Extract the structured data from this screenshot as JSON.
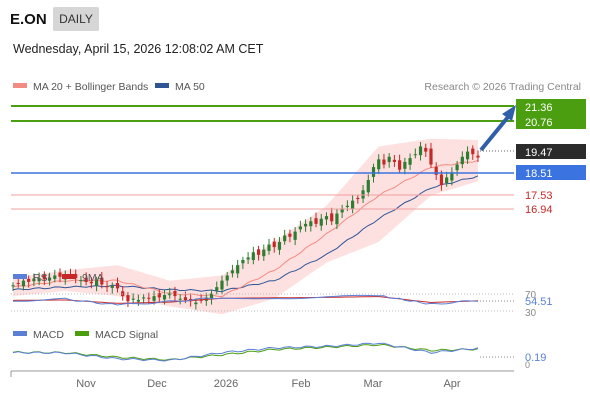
{
  "header": {
    "symbol": "E.ON",
    "period_tab": "DAILY",
    "datetime": "Wednesday, April 15, 2026 12:08:02 AM CET"
  },
  "legend": {
    "items": [
      {
        "label": "MA 20 + Bollinger Bands",
        "color": "#f28b82"
      },
      {
        "label": "MA 50",
        "color": "#2f5597"
      }
    ],
    "credit": "Research © 2026 Trading Central"
  },
  "colors": {
    "bullish": "#2e7d32",
    "bearish": "#c62828",
    "bollinger_fill": "#fde0e0",
    "ma20": "#f28b82",
    "ma50": "#2f5597",
    "resistance": "#4a9e0f",
    "support": "#3b73e0",
    "target_line": "#f0a0a0",
    "arrow": "#2f5fa8",
    "rsi": "#5b7fd6",
    "rsi_ma": "#c62828",
    "macd": "#5b7fd6",
    "macd_signal": "#4a9e0f"
  },
  "price_levels": [
    {
      "label": "21.36",
      "kind": "resistance"
    },
    {
      "label": "20.76",
      "kind": "resistance"
    },
    {
      "label": "19.47",
      "kind": "last"
    },
    {
      "label": "18.51",
      "kind": "support"
    },
    {
      "label": "17.53",
      "kind": "target"
    },
    {
      "label": "16.94",
      "kind": "target"
    }
  ],
  "rsi_panel": {
    "legend": [
      {
        "label": "RSI",
        "color": "#5b7fd6"
      },
      {
        "label": "9MA",
        "color": "#c62828"
      }
    ],
    "levels": [
      "70",
      "30"
    ],
    "value": "54.51"
  },
  "macd_panel": {
    "legend": [
      {
        "label": "MACD",
        "color": "#5b7fd6"
      },
      {
        "label": "MACD Signal",
        "color": "#4a9e0f"
      }
    ],
    "value": "0.19",
    "zero_label": "0"
  },
  "x_axis": {
    "labels": [
      "Nov",
      "Dec",
      "2026",
      "Feb",
      "Mar",
      "Apr"
    ]
  },
  "chart_data": {
    "type": "candlestick",
    "price_range": [
      15.5,
      21.7
    ],
    "series_close": [
      [
        0,
        14.52
      ],
      [
        1,
        14.6
      ],
      [
        2,
        14.7
      ],
      [
        3,
        14.65
      ],
      [
        4,
        14.78
      ],
      [
        5,
        14.8
      ],
      [
        6,
        14.75
      ],
      [
        7,
        14.82
      ],
      [
        8,
        14.9
      ],
      [
        9,
        14.85
      ],
      [
        10,
        14.92
      ],
      [
        11,
        14.88
      ],
      [
        12,
        14.8
      ],
      [
        13,
        14.72
      ],
      [
        14,
        14.65
      ],
      [
        15,
        14.6
      ],
      [
        16,
        14.7
      ],
      [
        17,
        14.55
      ],
      [
        18,
        14.45
      ],
      [
        19,
        14.5
      ],
      [
        20,
        14.4
      ],
      [
        21,
        14.1
      ],
      [
        22,
        13.9
      ],
      [
        23,
        14.0
      ],
      [
        24,
        13.95
      ],
      [
        25,
        14.05
      ],
      [
        26,
        14.0
      ],
      [
        27,
        14.1
      ],
      [
        28,
        14.05
      ],
      [
        29,
        14.15
      ],
      [
        30,
        14.2
      ],
      [
        31,
        14.1
      ],
      [
        32,
        14.0
      ],
      [
        33,
        13.95
      ],
      [
        34,
        13.9
      ],
      [
        35,
        13.85
      ],
      [
        36,
        13.95
      ],
      [
        37,
        14.05
      ],
      [
        38,
        14.2
      ],
      [
        39,
        14.45
      ],
      [
        40,
        14.7
      ],
      [
        41,
        14.9
      ],
      [
        42,
        15.1
      ],
      [
        43,
        15.3
      ],
      [
        44,
        15.5
      ],
      [
        45,
        15.6
      ],
      [
        46,
        15.8
      ],
      [
        47,
        15.7
      ],
      [
        48,
        15.9
      ],
      [
        49,
        16.1
      ],
      [
        50,
        16.0
      ],
      [
        51,
        16.2
      ],
      [
        52,
        16.45
      ],
      [
        53,
        16.4
      ],
      [
        54,
        16.6
      ],
      [
        55,
        16.8
      ],
      [
        56,
        16.9
      ],
      [
        57,
        17.0
      ],
      [
        58,
        16.9
      ],
      [
        59,
        17.1
      ],
      [
        60,
        17.2
      ],
      [
        61,
        17.0
      ],
      [
        62,
        17.3
      ],
      [
        63,
        17.5
      ],
      [
        64,
        17.6
      ],
      [
        65,
        17.8
      ],
      [
        66,
        17.9
      ],
      [
        67,
        18.2
      ],
      [
        68,
        18.6
      ],
      [
        69,
        19.1
      ],
      [
        70,
        19.4
      ],
      [
        71,
        19.2
      ],
      [
        72,
        19.5
      ],
      [
        73,
        19.3
      ],
      [
        74,
        19.0
      ],
      [
        75,
        19.3
      ],
      [
        76,
        19.45
      ],
      [
        77,
        19.6
      ],
      [
        78,
        19.9
      ],
      [
        79,
        19.7
      ],
      [
        80,
        19.2
      ],
      [
        81,
        18.8
      ],
      [
        82,
        18.4
      ],
      [
        83,
        18.7
      ],
      [
        84,
        18.9
      ],
      [
        85,
        19.2
      ],
      [
        86,
        19.5
      ],
      [
        87,
        19.7
      ],
      [
        88,
        19.6
      ],
      [
        89,
        19.47
      ]
    ],
    "series_ma20": [
      [
        0,
        14.45
      ],
      [
        10,
        14.7
      ],
      [
        20,
        14.7
      ],
      [
        30,
        14.2
      ],
      [
        40,
        14.1
      ],
      [
        50,
        15.1
      ],
      [
        60,
        16.5
      ],
      [
        70,
        18.0
      ],
      [
        80,
        19.1
      ],
      [
        89,
        19.35
      ]
    ],
    "series_ma50": [
      [
        0,
        14.35
      ],
      [
        10,
        14.45
      ],
      [
        20,
        14.5
      ],
      [
        30,
        14.35
      ],
      [
        40,
        14.3
      ],
      [
        50,
        14.7
      ],
      [
        60,
        15.7
      ],
      [
        70,
        17.1
      ],
      [
        80,
        18.3
      ],
      [
        89,
        18.75
      ]
    ],
    "series_bb_upper": [
      [
        0,
        14.8
      ],
      [
        10,
        15.1
      ],
      [
        20,
        15.3
      ],
      [
        30,
        14.7
      ],
      [
        40,
        14.9
      ],
      [
        50,
        16.2
      ],
      [
        60,
        17.6
      ],
      [
        70,
        19.9
      ],
      [
        80,
        20.2
      ],
      [
        89,
        20.15
      ]
    ],
    "series_bb_lower": [
      [
        0,
        14.1
      ],
      [
        10,
        14.3
      ],
      [
        20,
        14.1
      ],
      [
        30,
        13.7
      ],
      [
        40,
        13.4
      ],
      [
        50,
        14.0
      ],
      [
        60,
        15.4
      ],
      [
        70,
        16.2
      ],
      [
        80,
        18.0
      ],
      [
        89,
        18.55
      ]
    ],
    "rsi": [
      [
        0,
        54
      ],
      [
        10,
        58
      ],
      [
        20,
        44
      ],
      [
        30,
        52
      ],
      [
        40,
        62
      ],
      [
        50,
        60
      ],
      [
        60,
        63
      ],
      [
        70,
        66
      ],
      [
        80,
        46
      ],
      [
        89,
        54.51
      ]
    ],
    "rsi_ma": [
      [
        0,
        55
      ],
      [
        10,
        56
      ],
      [
        20,
        48
      ],
      [
        30,
        51
      ],
      [
        40,
        60
      ],
      [
        50,
        61
      ],
      [
        60,
        62
      ],
      [
        70,
        64
      ],
      [
        80,
        50
      ],
      [
        89,
        54
      ]
    ],
    "macd": [
      [
        0,
        0.05
      ],
      [
        10,
        0.04
      ],
      [
        20,
        -0.15
      ],
      [
        30,
        -0.2
      ],
      [
        40,
        0.05
      ],
      [
        50,
        0.2
      ],
      [
        60,
        0.25
      ],
      [
        70,
        0.35
      ],
      [
        80,
        0.05
      ],
      [
        89,
        0.19
      ]
    ],
    "macd_signal": [
      [
        0,
        0.06
      ],
      [
        10,
        0.05
      ],
      [
        20,
        -0.1
      ],
      [
        30,
        -0.18
      ],
      [
        40,
        -0.02
      ],
      [
        50,
        0.15
      ],
      [
        60,
        0.22
      ],
      [
        70,
        0.3
      ],
      [
        80,
        0.12
      ],
      [
        89,
        0.16
      ]
    ]
  }
}
